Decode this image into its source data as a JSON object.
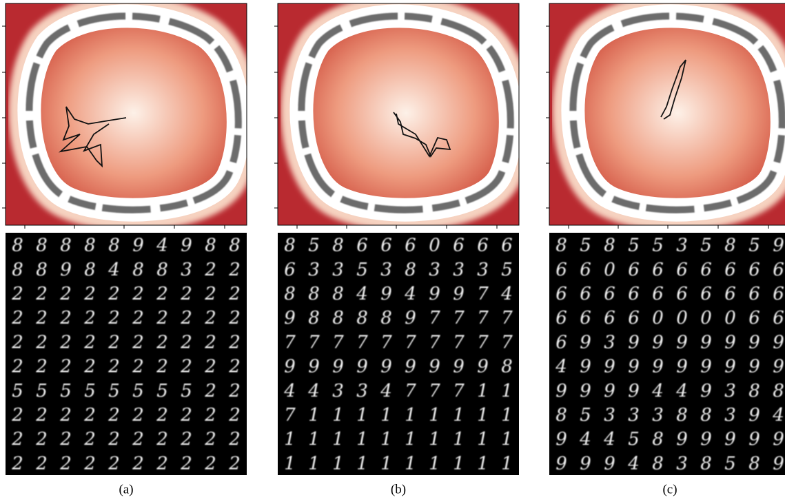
{
  "panels": [
    {
      "label": "(a)",
      "digits": [
        [
          "8",
          "8",
          "8",
          "8",
          "8",
          "9",
          "4",
          "9",
          "8",
          "8"
        ],
        [
          "8",
          "8",
          "9",
          "8",
          "4",
          "8",
          "8",
          "3",
          "2",
          "2"
        ],
        [
          "2",
          "2",
          "2",
          "2",
          "2",
          "2",
          "2",
          "2",
          "2",
          "2"
        ],
        [
          "2",
          "2",
          "2",
          "2",
          "2",
          "2",
          "2",
          "2",
          "2",
          "2"
        ],
        [
          "2",
          "2",
          "2",
          "2",
          "2",
          "2",
          "2",
          "2",
          "2",
          "2"
        ],
        [
          "2",
          "2",
          "2",
          "2",
          "2",
          "2",
          "2",
          "2",
          "2",
          "2"
        ],
        [
          "5",
          "5",
          "5",
          "5",
          "5",
          "5",
          "5",
          "5",
          "2",
          "2"
        ],
        [
          "2",
          "2",
          "2",
          "2",
          "2",
          "2",
          "2",
          "2",
          "2",
          "2"
        ],
        [
          "2",
          "2",
          "2",
          "2",
          "2",
          "2",
          "2",
          "2",
          "2",
          "2"
        ],
        [
          "2",
          "2",
          "2",
          "2",
          "2",
          "2",
          "2",
          "2",
          "2",
          "2"
        ]
      ]
    },
    {
      "label": "(b)",
      "digits": [
        [
          "8",
          "5",
          "8",
          "6",
          "6",
          "6",
          "0",
          "6",
          "6",
          "6"
        ],
        [
          "6",
          "3",
          "3",
          "5",
          "3",
          "8",
          "3",
          "3",
          "3",
          "5"
        ],
        [
          "8",
          "8",
          "8",
          "4",
          "9",
          "4",
          "9",
          "9",
          "7",
          "4"
        ],
        [
          "9",
          "8",
          "8",
          "8",
          "8",
          "9",
          "7",
          "7",
          "7",
          "7"
        ],
        [
          "7",
          "7",
          "7",
          "7",
          "7",
          "7",
          "7",
          "7",
          "7",
          "7"
        ],
        [
          "9",
          "9",
          "9",
          "9",
          "9",
          "9",
          "9",
          "9",
          "9",
          "8"
        ],
        [
          "4",
          "4",
          "3",
          "3",
          "4",
          "7",
          "7",
          "7",
          "1",
          "1"
        ],
        [
          "7",
          "1",
          "1",
          "1",
          "1",
          "1",
          "1",
          "1",
          "1",
          "1"
        ],
        [
          "1",
          "1",
          "1",
          "1",
          "1",
          "1",
          "1",
          "1",
          "1",
          "1"
        ],
        [
          "1",
          "1",
          "1",
          "1",
          "1",
          "1",
          "1",
          "1",
          "1",
          "1"
        ]
      ]
    },
    {
      "label": "(c)",
      "digits": [
        [
          "8",
          "5",
          "8",
          "5",
          "5",
          "3",
          "5",
          "8",
          "5",
          "9"
        ],
        [
          "6",
          "6",
          "0",
          "6",
          "6",
          "6",
          "6",
          "6",
          "6",
          "6"
        ],
        [
          "6",
          "6",
          "6",
          "6",
          "6",
          "6",
          "6",
          "6",
          "6",
          "6"
        ],
        [
          "6",
          "6",
          "6",
          "6",
          "0",
          "0",
          "0",
          "0",
          "6",
          "6"
        ],
        [
          "6",
          "9",
          "3",
          "9",
          "9",
          "9",
          "9",
          "9",
          "9",
          "9"
        ],
        [
          "4",
          "9",
          "9",
          "9",
          "9",
          "9",
          "9",
          "9",
          "9",
          "9"
        ],
        [
          "9",
          "9",
          "9",
          "9",
          "4",
          "4",
          "9",
          "3",
          "8",
          "8"
        ],
        [
          "8",
          "5",
          "3",
          "3",
          "3",
          "8",
          "8",
          "3",
          "9",
          "4"
        ],
        [
          "9",
          "4",
          "4",
          "5",
          "8",
          "9",
          "9",
          "9",
          "9",
          "9"
        ],
        [
          "9",
          "9",
          "9",
          "4",
          "8",
          "3",
          "8",
          "5",
          "8",
          "9"
        ]
      ]
    }
  ]
}
